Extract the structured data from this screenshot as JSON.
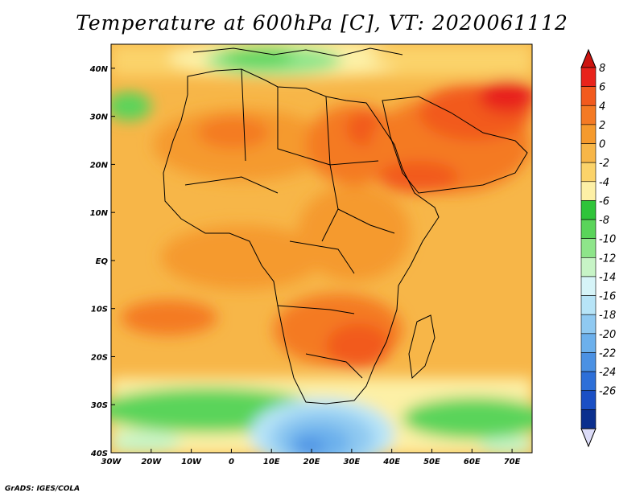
{
  "title": "Temperature at 600hPa [C], VT: 2020061112",
  "credit": "GrADS: IGES/COLA",
  "map": {
    "lon_range": [
      -30,
      75
    ],
    "lat_range": [
      -40,
      45
    ],
    "lon_ticks": [
      {
        "value": -30,
        "label": "30W"
      },
      {
        "value": -20,
        "label": "20W"
      },
      {
        "value": -10,
        "label": "10W"
      },
      {
        "value": 0,
        "label": "0"
      },
      {
        "value": 10,
        "label": "10E"
      },
      {
        "value": 20,
        "label": "20E"
      },
      {
        "value": 30,
        "label": "30E"
      },
      {
        "value": 40,
        "label": "40E"
      },
      {
        "value": 50,
        "label": "50E"
      },
      {
        "value": 60,
        "label": "60E"
      },
      {
        "value": 70,
        "label": "70E"
      }
    ],
    "lat_ticks": [
      {
        "value": 40,
        "label": "40N"
      },
      {
        "value": 30,
        "label": "30N"
      },
      {
        "value": 20,
        "label": "20N"
      },
      {
        "value": 10,
        "label": "10N"
      },
      {
        "value": 0,
        "label": "EQ"
      },
      {
        "value": -10,
        "label": "10S"
      },
      {
        "value": -20,
        "label": "20S"
      },
      {
        "value": -30,
        "label": "30S"
      },
      {
        "value": -40,
        "label": "40S"
      }
    ]
  },
  "colorbar": {
    "labels": [
      "8",
      "6",
      "4",
      "2",
      "0",
      "-2",
      "-4",
      "-6",
      "-8",
      "-10",
      "-12",
      "-14",
      "-16",
      "-18",
      "-20",
      "-22",
      "-24",
      "-26"
    ],
    "colors": [
      "#e8231b",
      "#f25a1e",
      "#f47a24",
      "#f59a2d",
      "#f7b648",
      "#fbd36a",
      "#fdf0a6",
      "#2fc43a",
      "#5ad45a",
      "#8ee58a",
      "#c7f4c6",
      "#d6f4f8",
      "#b7e4f7",
      "#8fc9f1",
      "#6cb0ec",
      "#4b91e3",
      "#2d6fd8",
      "#1a4fc4",
      "#0b2f8e"
    ],
    "top_arrow_color": "#cc1410",
    "bottom_arrow_color": "#dcdcf8"
  }
}
